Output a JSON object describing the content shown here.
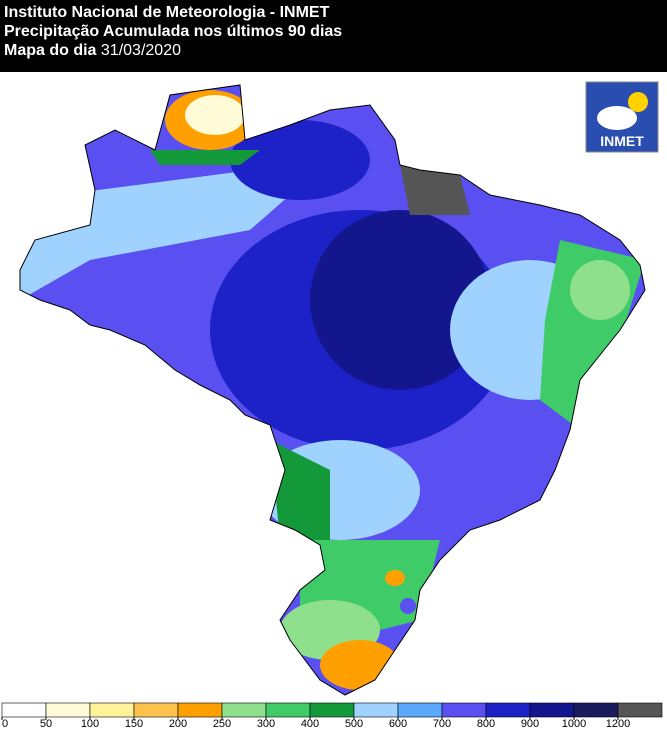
{
  "header": {
    "line1": "Instituto Nacional de Meteorologia - INMET",
    "line2": "Precipitação Acumulada nos últimos 90 dias",
    "line3_label": "Mapa do dia",
    "date": "31/03/2020"
  },
  "logo": "INMET",
  "legend": {
    "ticks": [
      0,
      50,
      100,
      150,
      200,
      250,
      300,
      400,
      500,
      600,
      700,
      800,
      900,
      1000,
      1200
    ],
    "colors": [
      "#ffffff",
      "#fffbd6",
      "#fff39a",
      "#ffc34d",
      "#ffa000",
      "#8fe08c",
      "#3ecb68",
      "#14993a",
      "#9fd2ff",
      "#5aa8ff",
      "#5a4ff0",
      "#1c22c8",
      "#14168e",
      "#1b1b5e",
      "#555555"
    ]
  }
}
